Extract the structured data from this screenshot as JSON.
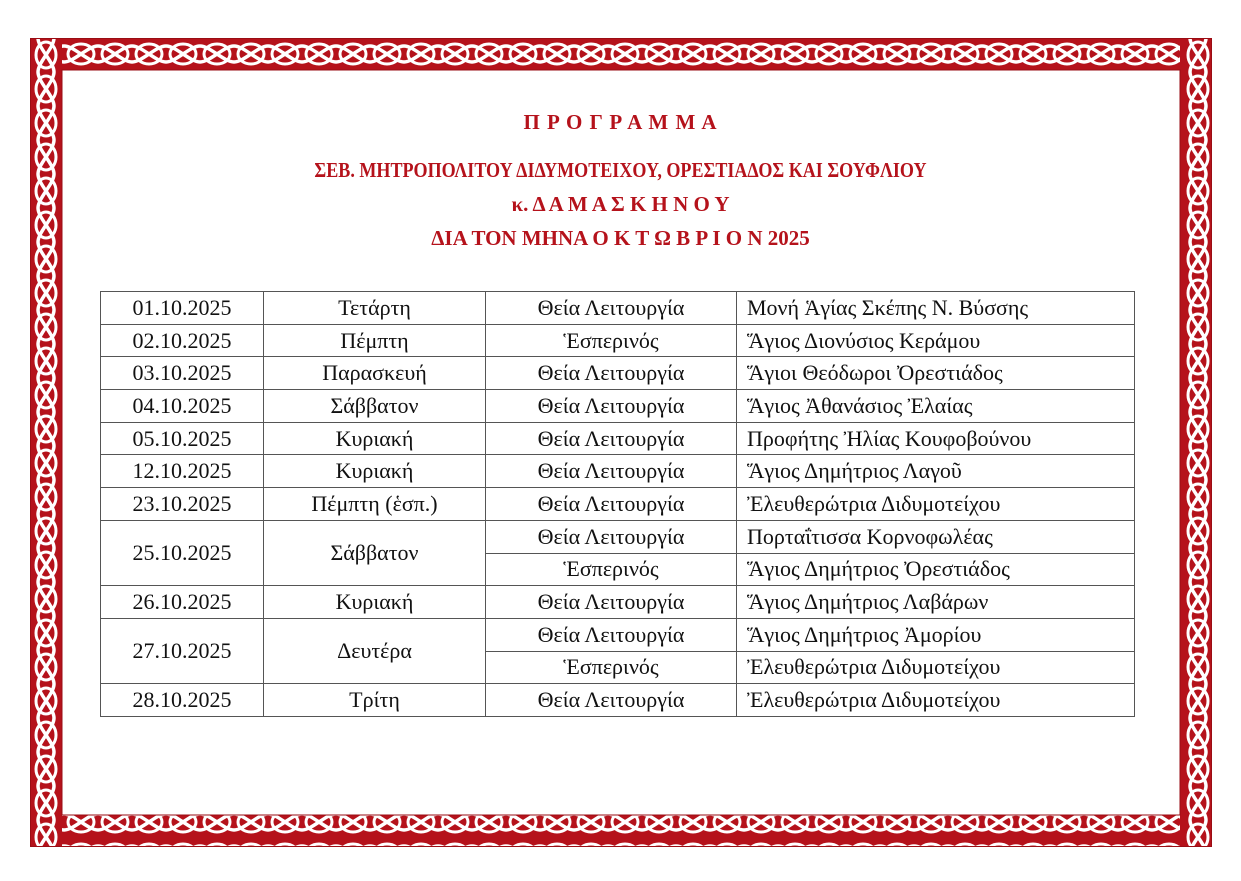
{
  "header": {
    "title": "Π Ρ Ο Γ Ρ Α Μ Μ Α",
    "subtitle": "ΣΕΒ. ΜΗΤΡΟΠΟΛΙΤΟΥ ΔΙΔΥΜΟΤΕΙΧΟΥ, ΟΡΕΣΤΙΑΔΟΣ ΚΑΙ ΣΟΥΦΛΙΟΥ",
    "name": "κ. Δ Α Μ Α Σ Κ Η Ν Ο Υ",
    "period": "ΔΙΑ ΤΟΝ ΜΗΝΑ Ο Κ Τ Ω Β Ρ Ι Ο Ν 2025"
  },
  "colors": {
    "accent": "#b5121b",
    "border": "#b5121b"
  },
  "schedule": [
    {
      "date": "01.10.2025",
      "day": "Τετάρτη",
      "events": [
        {
          "service": "Θεία Λειτουργία",
          "place": "Μονή Ἁγίας Σκέπης Ν. Βύσσης"
        }
      ]
    },
    {
      "date": "02.10.2025",
      "day": "Πέμπτη",
      "events": [
        {
          "service": "Ἑσπερινός",
          "place": "Ἅγιος Διονύσιος Κεράμου"
        }
      ]
    },
    {
      "date": "03.10.2025",
      "day": "Παρασκευή",
      "events": [
        {
          "service": "Θεία Λειτουργία",
          "place": "Ἅγιοι Θεόδωροι Ὀρεστιάδος"
        }
      ]
    },
    {
      "date": "04.10.2025",
      "day": "Σάββατον",
      "events": [
        {
          "service": "Θεία Λειτουργία",
          "place": "Ἅγιος Ἀθανάσιος Ἐλαίας"
        }
      ]
    },
    {
      "date": "05.10.2025",
      "day": "Κυριακή",
      "events": [
        {
          "service": "Θεία Λειτουργία",
          "place": "Προφήτης Ἠλίας Κουφοβούνου"
        }
      ]
    },
    {
      "date": "12.10.2025",
      "day": "Κυριακή",
      "events": [
        {
          "service": "Θεία Λειτουργία",
          "place": "Ἅγιος Δημήτριος Λαγοῦ"
        }
      ]
    },
    {
      "date": "23.10.2025",
      "day": "Πέμπτη (ἑσπ.)",
      "events": [
        {
          "service": "Θεία Λειτουργία",
          "place": "Ἐλευθερώτρια Διδυμοτείχου"
        }
      ]
    },
    {
      "date": "25.10.2025",
      "day": "Σάββατον",
      "events": [
        {
          "service": "Θεία Λειτουργία",
          "place": "Πορταΐτισσα Κορνοφωλέας"
        },
        {
          "service": "Ἑσπερινός",
          "place": "Ἅγιος Δημήτριος Ὀρεστιάδος"
        }
      ]
    },
    {
      "date": "26.10.2025",
      "day": "Κυριακή",
      "events": [
        {
          "service": "Θεία Λειτουργία",
          "place": "Ἅγιος Δημήτριος Λαβάρων"
        }
      ]
    },
    {
      "date": "27.10.2025",
      "day": "Δευτέρα",
      "events": [
        {
          "service": "Θεία Λειτουργία",
          "place": "Ἅγιος Δημήτριος Ἀμορίου"
        },
        {
          "service": "Ἑσπερινός",
          "place": "Ἐλευθερώτρια Διδυμοτείχου"
        }
      ]
    },
    {
      "date": "28.10.2025",
      "day": "Τρίτη",
      "events": [
        {
          "service": "Θεία Λειτουργία",
          "place": "Ἐλευθερώτρια Διδυμοτείχου"
        }
      ]
    }
  ]
}
